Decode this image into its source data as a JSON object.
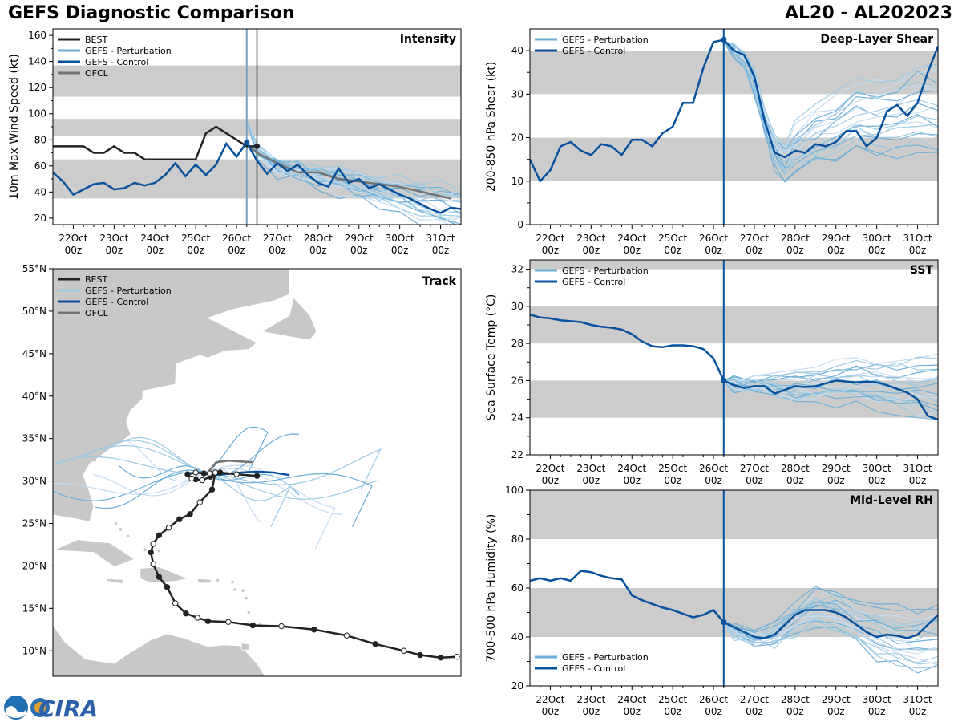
{
  "header": {
    "title": "GEFS Diagnostic Comparison",
    "storm_id": "AL20 - AL202023"
  },
  "colors": {
    "best": "#222222",
    "perturbation": "#6baed6",
    "control": "#08519c",
    "ofcl": "#737373",
    "band": "#cccccc",
    "land": "#c8c8c8"
  },
  "logo": {
    "name": "CIRA"
  },
  "time_ticks": [
    {
      "day": 22,
      "label": "22Oct\n00z"
    },
    {
      "day": 23,
      "label": "23Oct\n00z"
    },
    {
      "day": 24,
      "label": "24Oct\n00z"
    },
    {
      "day": 25,
      "label": "25Oct\n00z"
    },
    {
      "day": 26,
      "label": "26Oct\n00z"
    },
    {
      "day": 27,
      "label": "27Oct\n00z"
    },
    {
      "day": 28,
      "label": "28Oct\n00z"
    },
    {
      "day": 29,
      "label": "29Oct\n00z"
    },
    {
      "day": 30,
      "label": "30Oct\n00z"
    },
    {
      "day": 31,
      "label": "31Oct\n00z"
    }
  ],
  "chart_data": [
    {
      "id": "intensity",
      "type": "line",
      "title": "Intensity",
      "ylabel": "10m Max Wind Speed (kt)",
      "xlim": [
        21.5,
        31.5
      ],
      "ylim": [
        15,
        165
      ],
      "yticks": [
        20,
        40,
        60,
        80,
        100,
        120,
        140,
        160
      ],
      "bands": [
        [
          35,
          65
        ],
        [
          83,
          96
        ],
        [
          113,
          137
        ]
      ],
      "init_day": 26.25,
      "best_end_day": 26.5,
      "legend": [
        "BEST",
        "GEFS - Perturbation",
        "GEFS - Control",
        "OFCL"
      ],
      "best": {
        "x": [
          21.5,
          22,
          22.25,
          22.5,
          22.75,
          23,
          23.25,
          23.5,
          23.75,
          24,
          24.25,
          24.5,
          24.75,
          25,
          25.25,
          25.5,
          25.75,
          26,
          26.25,
          26.5
        ],
        "y": [
          75,
          75,
          75,
          70,
          70,
          75,
          70,
          70,
          65,
          65,
          65,
          65,
          65,
          65,
          85,
          90,
          85,
          80,
          75,
          75
        ]
      },
      "control": {
        "x": [
          21.5,
          21.75,
          22,
          22.25,
          22.5,
          22.75,
          23,
          23.25,
          23.5,
          23.75,
          24,
          24.25,
          24.5,
          24.75,
          25,
          25.25,
          25.5,
          25.75,
          26,
          26.25,
          26.5,
          26.75,
          27,
          27.25,
          27.5,
          27.75,
          28,
          28.25,
          28.5,
          28.75,
          29,
          29.25,
          29.5,
          29.75,
          30,
          30.25,
          30.5,
          30.75,
          31,
          31.25,
          31.5
        ],
        "y": [
          55,
          48,
          38,
          42,
          46,
          47,
          42,
          43,
          47,
          45,
          47,
          53,
          62,
          52,
          61,
          53,
          61,
          77,
          67,
          78,
          64,
          54,
          62,
          56,
          61,
          53,
          47,
          44,
          58,
          47,
          50,
          43,
          46,
          42,
          38,
          35,
          31,
          27,
          24,
          28,
          27
        ]
      },
      "ofcl": {
        "x": [
          26.25,
          26.5,
          27,
          27.5,
          28,
          28.5,
          29,
          30,
          31.25
        ],
        "y": [
          77,
          70,
          62,
          55,
          55,
          50,
          48,
          44,
          35
        ]
      },
      "perturbations": {
        "init_day": 26.25,
        "spread_kt": [
          -18,
          -12,
          -8,
          -6,
          -3,
          0,
          3,
          6,
          9,
          12,
          16,
          -15,
          -9,
          -4,
          2,
          7,
          11,
          -10,
          -1,
          5
        ],
        "mean_x": [
          26.25,
          26.5,
          27,
          27.5,
          28,
          28.5,
          29,
          29.5,
          30,
          30.5,
          31,
          31.5
        ],
        "mean_y": [
          95,
          72,
          58,
          56,
          53,
          48,
          45,
          41,
          38,
          34,
          30,
          27
        ]
      }
    },
    {
      "id": "shear",
      "type": "line",
      "title": "Deep-Layer Shear",
      "ylabel": "200-850 hPa Shear (kt)",
      "xlim": [
        21.5,
        31.5
      ],
      "ylim": [
        0,
        45
      ],
      "yticks": [
        0,
        10,
        20,
        30,
        40
      ],
      "bands": [
        [
          10,
          20
        ],
        [
          30,
          40
        ]
      ],
      "init_day": 26.25,
      "legend": [
        "GEFS - Perturbation",
        "GEFS - Control"
      ],
      "control": {
        "x": [
          21.5,
          21.75,
          22,
          22.25,
          22.5,
          22.75,
          23,
          23.25,
          23.5,
          23.75,
          24,
          24.25,
          24.5,
          24.75,
          25,
          25.25,
          25.5,
          25.75,
          26,
          26.25,
          26.5,
          26.75,
          27,
          27.25,
          27.5,
          27.75,
          28,
          28.25,
          28.5,
          28.75,
          29,
          29.25,
          29.5,
          29.75,
          30,
          30.25,
          30.5,
          30.75,
          31,
          31.25,
          31.5
        ],
        "y": [
          15,
          10,
          12.5,
          18,
          19,
          17,
          16,
          18.5,
          18,
          16,
          19.5,
          19.5,
          18,
          21,
          22.5,
          28,
          28,
          36,
          42,
          42.5,
          40,
          39,
          34,
          24,
          16.5,
          15.5,
          17,
          16.5,
          18.5,
          18,
          19,
          21.5,
          21.5,
          18,
          20,
          26,
          27.5,
          25,
          28,
          35,
          41
        ]
      },
      "perturbations": {
        "init_day": 26.25,
        "spread_kt": [
          -6,
          -4,
          -3,
          -2,
          -1,
          0,
          1,
          2,
          3,
          4,
          6,
          8,
          -8,
          -5,
          5,
          7,
          -7,
          9,
          -9,
          10
        ],
        "mean_x": [
          26.25,
          26.5,
          26.75,
          27,
          27.25,
          27.5,
          27.75,
          28,
          28.5,
          29,
          29.5,
          30,
          30.5,
          31,
          31.5
        ],
        "mean_y": [
          42,
          40,
          38,
          33,
          24,
          17,
          14,
          17,
          20,
          22,
          25,
          24,
          25,
          27,
          26
        ]
      }
    },
    {
      "id": "sst",
      "type": "line",
      "title": "SST",
      "ylabel": "Sea Surface Temp (°C)",
      "xlim": [
        21.5,
        31.5
      ],
      "ylim": [
        22,
        32.5
      ],
      "yticks": [
        22,
        24,
        26,
        28,
        30,
        32
      ],
      "bands": [
        [
          24,
          26
        ],
        [
          28,
          30
        ],
        [
          32,
          33
        ]
      ],
      "init_day": 26.25,
      "legend": [
        "GEFS - Perturbation",
        "GEFS - Control"
      ],
      "control": {
        "x": [
          21.5,
          21.75,
          22,
          22.25,
          22.5,
          22.75,
          23,
          23.25,
          23.5,
          23.75,
          24,
          24.25,
          24.5,
          24.75,
          25,
          25.25,
          25.5,
          25.75,
          26,
          26.25,
          26.5,
          26.75,
          27,
          27.25,
          27.5,
          27.75,
          28,
          28.25,
          28.5,
          28.75,
          29,
          29.25,
          29.5,
          29.75,
          30,
          30.25,
          30.5,
          30.75,
          31,
          31.25,
          31.5
        ],
        "y": [
          29.55,
          29.4,
          29.35,
          29.25,
          29.2,
          29.15,
          29,
          28.9,
          28.85,
          28.75,
          28.5,
          28.1,
          27.85,
          27.8,
          27.9,
          27.9,
          27.85,
          27.7,
          27.2,
          26,
          25.75,
          25.6,
          25.7,
          25.7,
          25.3,
          25.5,
          25.7,
          25.65,
          25.7,
          25.85,
          26,
          25.95,
          25.9,
          25.95,
          25.9,
          25.75,
          25.55,
          25.35,
          25,
          24.1,
          23.9
        ]
      },
      "perturbations": {
        "init_day": 26.25,
        "spread_kt": [
          -1.5,
          -1.2,
          -0.9,
          -0.6,
          -0.3,
          0,
          0.3,
          0.6,
          0.9,
          1.2,
          1.5,
          1.8,
          -0.8,
          0.4,
          -0.4,
          1.0,
          -1.0,
          0.7,
          -0.2,
          1.6
        ],
        "mean_x": [
          26.25,
          26.5,
          27,
          27.5,
          28,
          28.5,
          29,
          29.5,
          30,
          30.5,
          31,
          31.5
        ],
        "mean_y": [
          26,
          25.8,
          25.7,
          25.6,
          25.6,
          25.7,
          25.8,
          25.8,
          25.7,
          25.6,
          25.4,
          25.3
        ]
      }
    },
    {
      "id": "rh",
      "type": "line",
      "title": "Mid-Level RH",
      "ylabel": "700-500 hPa Humidity (%)",
      "xlim": [
        21.5,
        31.5
      ],
      "ylim": [
        20,
        100
      ],
      "yticks": [
        20,
        40,
        60,
        80,
        100
      ],
      "bands": [
        [
          40,
          60
        ],
        [
          80,
          100
        ]
      ],
      "init_day": 26.25,
      "legend": [
        "GEFS - Perturbation",
        "GEFS - Control"
      ],
      "control": {
        "x": [
          21.5,
          21.75,
          22,
          22.25,
          22.5,
          22.75,
          23,
          23.25,
          23.5,
          23.75,
          24,
          24.25,
          24.5,
          24.75,
          25,
          25.25,
          25.5,
          25.75,
          26,
          26.25,
          26.5,
          26.75,
          27,
          27.25,
          27.5,
          27.75,
          28,
          28.25,
          28.5,
          28.75,
          29,
          29.25,
          29.5,
          29.75,
          30,
          30.25,
          30.5,
          30.75,
          31,
          31.25,
          31.5
        ],
        "y": [
          63,
          64,
          63,
          64,
          63,
          67,
          66.5,
          65,
          64,
          63.5,
          57,
          55,
          53.5,
          52,
          51,
          49.5,
          48,
          49,
          51,
          46,
          44,
          42,
          40,
          39.5,
          41,
          45,
          49,
          51,
          51,
          51,
          50,
          48,
          45,
          42,
          40,
          41,
          40.5,
          39.5,
          41,
          45,
          49
        ]
      },
      "perturbations": {
        "init_day": 26.25,
        "spread_kt": [
          -12,
          -10,
          -8,
          -6,
          -4,
          -2,
          0,
          2,
          4,
          6,
          8,
          10,
          12,
          -9,
          -5,
          3,
          7,
          -3,
          11,
          -11
        ],
        "mean_x": [
          26.25,
          26.5,
          27,
          27.5,
          28,
          28.5,
          29,
          29.5,
          30,
          30.5,
          31,
          31.5
        ],
        "mean_y": [
          46,
          42,
          40,
          41,
          47,
          52,
          50,
          46,
          42,
          40,
          39,
          40
        ]
      }
    },
    {
      "id": "track",
      "type": "scatter",
      "title": "Track",
      "ylim_lat": [
        7,
        55
      ],
      "xlim_lon": [
        -85,
        -35
      ],
      "lat_ticks": [
        "10°N",
        "15°N",
        "20°N",
        "25°N",
        "30°N",
        "35°N",
        "40°N",
        "45°N",
        "50°N",
        "55°N"
      ],
      "lat_values": [
        10,
        15,
        20,
        25,
        30,
        35,
        40,
        45,
        50,
        55
      ],
      "legend": [
        "BEST",
        "GEFS - Perturbation",
        "GEFS - Control",
        "OFCL"
      ],
      "best": {
        "lon": [
          -35.5,
          -37.5,
          -40,
          -42,
          -45.5,
          -49,
          -53,
          -57,
          -60.5,
          -63.5,
          -66,
          -67.3,
          -68.7,
          -70,
          -71,
          -72,
          -72.7,
          -73,
          -72.7,
          -72,
          -70.8,
          -69.5,
          -68.2,
          -67,
          -65.5,
          -65.1,
          -65.7,
          -66.7,
          -67.5,
          -68,
          -68.5,
          -67.5,
          -66.5,
          -65.8,
          -64.5,
          -62.5,
          -60
        ],
        "lat": [
          9.3,
          9.2,
          9.5,
          10,
          10.8,
          11.8,
          12.5,
          12.9,
          13,
          13.4,
          13.5,
          13.9,
          14.4,
          15.6,
          17.5,
          18.7,
          20.2,
          21.6,
          22.6,
          23.6,
          24.5,
          25.5,
          26.1,
          27.5,
          29,
          31,
          30.5,
          30.1,
          30.2,
          30.3,
          30.8,
          31,
          30.9,
          30.9,
          31,
          30.8,
          30.6
        ],
        "open_idx": [
          0,
          3,
          5,
          7,
          9,
          11,
          13,
          16,
          18,
          20,
          23,
          25,
          27,
          29,
          31,
          33,
          35
        ]
      },
      "control": {
        "lon": [
          -66.7,
          -65.5,
          -64,
          -62,
          -60,
          -58,
          -56
        ],
        "lat": [
          30.9,
          30.7,
          30.8,
          31.0,
          31.1,
          31.0,
          30.7
        ]
      },
      "ofcl": {
        "lon": [
          -66,
          -65,
          -63.5,
          -62,
          -60.5
        ],
        "lat": [
          31,
          32.2,
          32.4,
          32.3,
          32.2
        ]
      }
    }
  ]
}
